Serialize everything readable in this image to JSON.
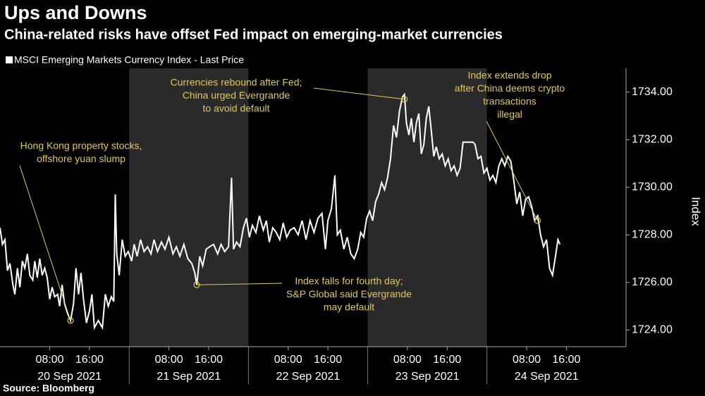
{
  "chart_data": {
    "type": "line",
    "title": "Ups and Downs",
    "subtitle": "China-related risks have offset Fed impact on emerging-market currencies",
    "y_label": "Index",
    "source": "Source: Bloomberg",
    "color": "#ffffff",
    "series": [
      {
        "name": "MSCI Emerging Markets Currency Index - Last Price",
        "color": "#ffffff",
        "x": [
          -2,
          -1.5,
          -1,
          -0.5,
          0,
          0.6,
          1,
          1.5,
          2,
          2.5,
          3,
          3.5,
          4,
          4.6,
          5,
          5.5,
          6,
          6.5,
          7,
          7.5,
          8,
          8.5,
          9,
          9.6,
          10,
          10.5,
          11,
          11.6,
          12.2,
          12.8,
          13.3,
          13.8,
          14.3,
          14.8,
          15.4,
          16,
          16.5,
          17,
          17.8,
          18.6,
          19.2,
          19.8,
          20.4,
          20.9,
          21.2,
          21.5,
          22,
          22.6,
          23.2,
          23.8,
          24.5,
          25,
          25.6,
          26.3,
          27,
          27.7,
          28.4,
          29,
          29.7,
          30.5,
          31.2,
          32,
          32.8,
          33.5,
          34.2,
          35,
          35.8,
          36.6,
          37.2,
          37.6,
          38.2,
          38.8,
          39.5,
          40.2,
          41,
          41.8,
          42.5,
          43.2,
          44,
          44.6,
          45,
          45.6,
          46.3,
          47,
          47.6,
          48.2,
          48.8,
          49.5,
          50.2,
          51,
          51.6,
          52.2,
          52.9,
          53.6,
          54.3,
          55,
          55.7,
          56.4,
          57.2,
          58,
          58.8,
          59.6,
          60.4,
          61.2,
          62,
          62.8,
          63.5,
          64,
          64.7,
          65.4,
          65.9,
          66.5,
          67.2,
          67.9,
          68.6,
          69.3,
          70,
          70.6,
          71.2,
          71.8,
          72.4,
          73,
          73.6,
          74.2,
          74.8,
          75.4,
          76,
          76.6,
          77.2,
          77.8,
          78.4,
          79,
          79.4,
          79.8,
          80.3,
          80.8,
          81.3,
          81.8,
          82.3,
          82.8,
          83.3,
          83.8,
          84.3,
          84.8,
          85.3,
          85.8,
          86.4,
          87,
          87.6,
          88.2,
          88.8,
          89.4,
          90,
          90.6,
          91.2,
          92.2,
          93.2,
          93.6,
          94.2,
          94.8,
          95.4,
          96,
          96.6,
          97.2,
          97.8,
          98.4,
          99,
          99.6,
          100.2,
          100.8,
          101.4,
          102,
          102.6,
          103.2,
          103.8,
          104.4,
          105,
          105.6,
          106.2,
          106.8,
          107.4,
          108,
          108.6,
          109.2,
          109.8,
          110.3,
          110.7
        ],
        "values": [
          1728.3,
          1727.6,
          1727.8,
          1726.5,
          1726.8,
          1725.9,
          1725.5,
          1726.6,
          1725.8,
          1726.9,
          1726.6,
          1727.2,
          1726.3,
          1726.1,
          1726.9,
          1726.2,
          1727,
          1726.3,
          1726.6,
          1726.2,
          1725.3,
          1725.8,
          1725.4,
          1725.5,
          1725,
          1725.9,
          1725.1,
          1724.7,
          1724.4,
          1725.1,
          1726.6,
          1725.5,
          1726.4,
          1725.3,
          1724.3,
          1724.8,
          1725.5,
          1724.1,
          1724.4,
          1724.1,
          1725.5,
          1725,
          1725.4,
          1725.2,
          1729.7,
          1727.2,
          1726.3,
          1727.8,
          1727.1,
          1727.3,
          1726.9,
          1727.6,
          1727.1,
          1727.8,
          1727.3,
          1727.5,
          1727.2,
          1727.8,
          1727.3,
          1727.7,
          1727.4,
          1727.9,
          1727.2,
          1727.5,
          1727.1,
          1727.6,
          1727,
          1726.8,
          1726.4,
          1725.9,
          1727.1,
          1726.7,
          1727.4,
          1727.5,
          1727.6,
          1727.2,
          1727.6,
          1727.3,
          1727.5,
          1730.4,
          1727.4,
          1727.7,
          1727.5,
          1728.3,
          1728.7,
          1727.9,
          1728.4,
          1728.1,
          1728.8,
          1728.2,
          1728.6,
          1727.7,
          1728.3,
          1728.1,
          1727.8,
          1728.5,
          1727.9,
          1728.2,
          1728.3,
          1728,
          1728.6,
          1727.8,
          1728.6,
          1728.1,
          1728.7,
          1728.9,
          1727.4,
          1728.6,
          1729.1,
          1730.5,
          1728,
          1728.2,
          1727.4,
          1727.9,
          1727.2,
          1727,
          1727.4,
          1728.1,
          1727.9,
          1728.7,
          1729,
          1728.6,
          1729.4,
          1729.7,
          1730.2,
          1729.9,
          1730.4,
          1731.2,
          1732.6,
          1732.1,
          1733.2,
          1733.8,
          1733.9,
          1732.7,
          1732.2,
          1732.9,
          1731.9,
          1732.7,
          1733.1,
          1731.4,
          1731.8,
          1732.9,
          1733.4,
          1732.4,
          1731.3,
          1731.7,
          1731.2,
          1731.4,
          1730.9,
          1731.2,
          1730.7,
          1730.9,
          1730.5,
          1730.8,
          1731.9,
          1731.9,
          1731.9,
          1731.8,
          1731.2,
          1731.3,
          1730.6,
          1730.8,
          1730.3,
          1730.5,
          1730.2,
          1730.9,
          1731.2,
          1730.9,
          1731.3,
          1731.1,
          1730.3,
          1729.3,
          1729.8,
          1728.8,
          1729.5,
          1729.6,
          1729.2,
          1728.6,
          1728.8,
          1728,
          1727.5,
          1727.8,
          1726.6,
          1726.3,
          1727.1,
          1727.8,
          1727.6
        ]
      }
    ],
    "xlim": [
      -2,
      124
    ],
    "xticks": [
      {
        "value": 8,
        "label": "08:00"
      },
      {
        "value": 16,
        "label": "16:00"
      },
      {
        "value": 32,
        "label": "08:00"
      },
      {
        "value": 40,
        "label": "16:00"
      },
      {
        "value": 56,
        "label": "08:00"
      },
      {
        "value": 64,
        "label": "16:00"
      },
      {
        "value": 80,
        "label": "08:00"
      },
      {
        "value": 88,
        "label": "16:00"
      },
      {
        "value": 104,
        "label": "08:00"
      },
      {
        "value": 112,
        "label": "16:00"
      }
    ],
    "day_ticks": [
      {
        "value": 12,
        "label": "20 Sep 2021"
      },
      {
        "value": 36,
        "label": "21 Sep 2021"
      },
      {
        "value": 60,
        "label": "22 Sep 2021"
      },
      {
        "value": 84,
        "label": "23 Sep 2021"
      },
      {
        "value": 108,
        "label": "24 Sep 2021"
      }
    ],
    "ylim": [
      1723.3,
      1735
    ],
    "yticks": [
      {
        "value": 1724,
        "label": "1724.00"
      },
      {
        "value": 1726,
        "label": "1726.00"
      },
      {
        "value": 1728,
        "label": "1728.00"
      },
      {
        "value": 1730,
        "label": "1730.00"
      },
      {
        "value": 1732,
        "label": "1732.00"
      },
      {
        "value": 1734,
        "label": "1734.00"
      }
    ],
    "annotations": [
      {
        "lines": [
          "Hong Kong property stocks,",
          "offshore yuan slump"
        ],
        "x": 12.2,
        "y": 1724.4
      },
      {
        "lines": [
          "Currencies rebound after Fed;",
          "China urged Evergrande",
          "to avoid default"
        ],
        "x": 79.4,
        "y": 1733.7
      },
      {
        "lines": [
          "Index extends drop",
          "after China deems crypto",
          "transactions",
          "illegal"
        ],
        "x": 106.2,
        "y": 1728.6
      },
      {
        "lines": [
          "Index falls for fourth day;",
          "S&P Global said Evergrande",
          "may default"
        ],
        "x": 37.6,
        "y": 1725.9
      }
    ]
  }
}
